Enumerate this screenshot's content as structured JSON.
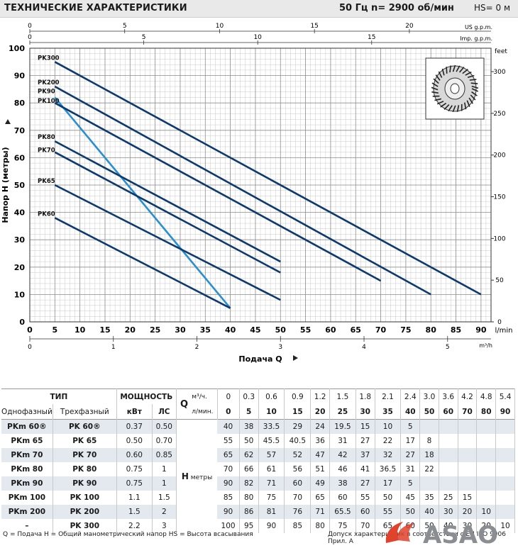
{
  "header": {
    "title": "ТЕХНИЧЕСКИЕ ХАРАКТЕРИСТИКИ",
    "speed": "50 Гц   n= 2900  об/мин",
    "hs": "HS= 0 м"
  },
  "chart_data": {
    "type": "line",
    "ylabel": "Напор  Н  (метры)",
    "xlabel": "Подача  Q",
    "x_unit": "l/min",
    "right_axis_unit": "feet",
    "x_ticks": [
      0,
      5,
      10,
      15,
      20,
      25,
      30,
      35,
      40,
      45,
      50,
      55,
      60,
      65,
      70,
      75,
      80,
      85,
      90
    ],
    "y_ticks": [
      0,
      10,
      20,
      30,
      40,
      50,
      60,
      70,
      80,
      90,
      100
    ],
    "feet_ticks": [
      0,
      50,
      100,
      150,
      200,
      250,
      300
    ],
    "us_gpm_ticks": [
      0,
      5,
      10,
      15,
      20
    ],
    "us_gpm_unit": "US g.p.m.",
    "imp_gpm_ticks": [
      0,
      5,
      10,
      15
    ],
    "imp_gpm_unit": "Imp. g.p.m.",
    "m3h_ticks": [
      0,
      1,
      2,
      3,
      4,
      5
    ],
    "m3h_unit": "m³/h",
    "xlim": [
      0,
      92
    ],
    "ylim": [
      0,
      100
    ],
    "series": [
      {
        "name": "PK300",
        "color": "#0d3a6e",
        "x": [
          5,
          90
        ],
        "y": [
          95,
          10
        ]
      },
      {
        "name": "PK200",
        "color": "#0d3a6e",
        "x": [
          5,
          80
        ],
        "y": [
          86,
          10
        ]
      },
      {
        "name": "PK90",
        "color": "#2a8fd0",
        "x": [
          5,
          40
        ],
        "y": [
          82,
          5
        ]
      },
      {
        "name": "PK100",
        "color": "#0d3a6e",
        "x": [
          5,
          70
        ],
        "y": [
          80,
          15
        ]
      },
      {
        "name": "PK80",
        "color": "#0d3a6e",
        "x": [
          5,
          50
        ],
        "y": [
          66,
          22
        ]
      },
      {
        "name": "PK70",
        "color": "#0d3a6e",
        "x": [
          5,
          50
        ],
        "y": [
          62,
          18
        ]
      },
      {
        "name": "PK65",
        "color": "#0d3a6e",
        "x": [
          5,
          50
        ],
        "y": [
          50,
          8
        ]
      },
      {
        "name": "PK60",
        "color": "#0d3a6e",
        "x": [
          5,
          40
        ],
        "y": [
          38,
          5
        ]
      }
    ]
  },
  "table": {
    "type_label": "ТИП",
    "power_label": "МОЩНОСТЬ",
    "q_label": "Q",
    "single_phase_label": "Однофазный",
    "three_phase_label": "Трехфазный",
    "kw_label": "кВт",
    "hp_label": "ЛС",
    "m3h_label": "м³/ч.",
    "lmin_label": "л/мин.",
    "h_label": "H",
    "h_unit": "метры",
    "m3h_values": [
      "0",
      "0.3",
      "0.6",
      "0.9",
      "1.2",
      "1.5",
      "1.8",
      "2.1",
      "2.4",
      "3.0",
      "3.6",
      "4.2",
      "4.8",
      "5.4"
    ],
    "lmin_values": [
      "0",
      "5",
      "10",
      "15",
      "20",
      "25",
      "30",
      "35",
      "40",
      "50",
      "60",
      "70",
      "80",
      "90"
    ],
    "rows": [
      {
        "single": "PKm 60®",
        "three": "PK 60®",
        "kw": "0.37",
        "hp": "0.50",
        "h": [
          "40",
          "38",
          "33.5",
          "29",
          "24",
          "19.5",
          "15",
          "10",
          "5",
          "",
          "",
          "",
          "",
          ""
        ]
      },
      {
        "single": "PKm 65",
        "three": "PK 65",
        "kw": "0.50",
        "hp": "0.70",
        "h": [
          "55",
          "50",
          "45.5",
          "40.5",
          "36",
          "31",
          "27",
          "22",
          "17",
          "8",
          "",
          "",
          "",
          ""
        ]
      },
      {
        "single": "PKm 70",
        "three": "PK 70",
        "kw": "0.60",
        "hp": "0.85",
        "h": [
          "65",
          "62",
          "57",
          "52",
          "47",
          "42",
          "37",
          "32",
          "27",
          "18",
          "",
          "",
          "",
          ""
        ]
      },
      {
        "single": "PKm 80",
        "three": "PK 80",
        "kw": "0.75",
        "hp": "1",
        "h": [
          "70",
          "66",
          "61",
          "56",
          "51",
          "46",
          "41",
          "36.5",
          "31",
          "22",
          "",
          "",
          "",
          ""
        ]
      },
      {
        "single": "PKm 90",
        "three": "PK 90",
        "kw": "0.75",
        "hp": "1",
        "h": [
          "90",
          "82",
          "71",
          "60",
          "49",
          "38",
          "27",
          "17",
          "5",
          "",
          "",
          "",
          "",
          ""
        ]
      },
      {
        "single": "PKm 100",
        "three": "PK 100",
        "kw": "1.1",
        "hp": "1.5",
        "h": [
          "85",
          "80",
          "75",
          "70",
          "65",
          "60",
          "55",
          "50",
          "45",
          "35",
          "25",
          "15",
          "",
          ""
        ]
      },
      {
        "single": "PKm 200",
        "three": "PK 200",
        "kw": "1.5",
        "hp": "2",
        "h": [
          "90",
          "86",
          "81",
          "76",
          "71",
          "65.5",
          "60",
          "55",
          "50",
          "40",
          "30",
          "20",
          "10",
          ""
        ]
      },
      {
        "single": "–",
        "three": "PK 300",
        "kw": "2.2",
        "hp": "3",
        "h": [
          "100",
          "95",
          "90",
          "85",
          "80",
          "75",
          "70",
          "65",
          "60",
          "50",
          "40",
          "30",
          "20",
          "10"
        ]
      }
    ]
  },
  "footer": {
    "legend": "Q = Подача   H = Общий манометрический напор   HS = Высота всасывания",
    "tolerance": "Допуск характеристик в соответствии с EN ISO 9906 Прил. А",
    "logo_text": "ASAO"
  }
}
